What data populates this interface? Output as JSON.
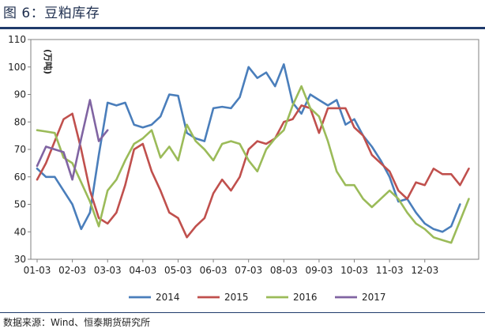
{
  "figure": {
    "title": "图 6：豆粕库存",
    "source": "数据来源：Wind、恒泰期货研究所"
  },
  "colors": {
    "title_rule": "#1f3a6b",
    "axis": "#808080",
    "grid": "#e3e3e3"
  },
  "chart_data": {
    "type": "line",
    "ylabel": "(万吨)",
    "xlabel": "",
    "ylim": [
      30,
      110
    ],
    "yticks": [
      30,
      40,
      50,
      60,
      70,
      80,
      90,
      100,
      110
    ],
    "x_domain": [
      0,
      12
    ],
    "x_tick_labels": [
      "01-03",
      "02-03",
      "03-03",
      "04-03",
      "05-03",
      "06-03",
      "07-03",
      "08-03",
      "09-03",
      "10-03",
      "11-03",
      "12-03"
    ],
    "x_tick_positions": [
      0,
      1,
      2,
      3,
      4,
      5,
      6,
      7,
      8,
      9,
      10,
      11
    ],
    "grid": false,
    "legend_position": "bottom",
    "series": [
      {
        "name": "2014",
        "color": "#4a7ebb",
        "x": [
          0,
          0.25,
          0.5,
          1.0,
          1.25,
          1.5,
          1.75,
          2.0,
          2.25,
          2.5,
          2.75,
          3.0,
          3.25,
          3.5,
          3.75,
          4.0,
          4.25,
          4.5,
          4.75,
          5.0,
          5.25,
          5.5,
          5.75,
          6.0,
          6.25,
          6.5,
          6.75,
          7.0,
          7.25,
          7.5,
          7.75,
          8.0,
          8.25,
          8.5,
          8.75,
          9.0,
          9.25,
          9.5,
          9.75,
          10.0,
          10.25,
          10.5,
          10.75,
          11.0,
          11.25,
          11.5,
          11.75
        ],
        "values": [
          63,
          60,
          60,
          50,
          41,
          47,
          68,
          87,
          86,
          87,
          79,
          78,
          79,
          82,
          90,
          89.5,
          76,
          74,
          73,
          85,
          85.5,
          85,
          89,
          100,
          96,
          98,
          93,
          101,
          87,
          83,
          90,
          88,
          86,
          88,
          79,
          81,
          75,
          71,
          66,
          60,
          51,
          52,
          47,
          43,
          41,
          40,
          42
        ]
      },
      {
        "name": "2015",
        "color": "#c0504d",
        "x": [
          0,
          0.25,
          0.5,
          0.75,
          1.0,
          1.25,
          1.5,
          1.75,
          2.0,
          2.25,
          2.5,
          2.75,
          3.0,
          3.25,
          3.5,
          3.75,
          4.0,
          4.25,
          4.5,
          4.75,
          5.0,
          5.25,
          5.5,
          5.75,
          6.0,
          6.25,
          6.5,
          6.75,
          7.0,
          7.25,
          7.5,
          7.75,
          8.0,
          8.25,
          8.5,
          8.75,
          9.0,
          9.25,
          9.5,
          9.75,
          10.0,
          10.25,
          10.5,
          10.75,
          11.0,
          11.25,
          11.5,
          11.75
        ],
        "values": [
          59,
          65,
          73,
          81,
          83,
          70,
          55,
          45,
          43,
          47,
          57,
          70,
          72,
          62,
          55,
          47,
          45,
          38,
          42,
          45,
          54,
          59,
          55,
          60,
          70,
          73,
          72,
          74,
          80,
          81,
          86,
          85,
          76,
          85,
          85,
          85,
          78,
          75,
          68,
          65,
          62,
          55,
          52,
          58,
          57,
          63,
          61,
          61
        ]
      },
      {
        "name": "2016",
        "color": "#9bbb59",
        "x": [
          0,
          0.25,
          0.5,
          0.75,
          1.0,
          1.25,
          1.5,
          1.75,
          2.0,
          2.25,
          2.5,
          2.75,
          3.0,
          3.25,
          3.5,
          3.75,
          4.0,
          4.25,
          4.5,
          4.75,
          5.0,
          5.25,
          5.5,
          5.75,
          6.0,
          6.25,
          6.5,
          6.75,
          7.0,
          7.25,
          7.5,
          7.75,
          8.0,
          8.25,
          8.5,
          8.75,
          9.0,
          9.25,
          9.5,
          9.75,
          10.0,
          10.25,
          10.5,
          10.75,
          11.0,
          11.25,
          11.5,
          11.75
        ],
        "values": [
          77,
          76.5,
          76,
          67,
          65,
          58,
          51,
          42,
          55,
          59,
          66,
          72,
          74,
          77,
          67,
          71,
          66,
          79,
          73,
          70,
          66,
          72,
          73,
          72,
          66,
          62,
          70,
          74,
          77,
          86,
          93,
          85,
          82,
          73,
          62,
          57,
          57,
          52,
          49,
          52,
          55,
          52,
          47,
          43,
          41,
          38,
          37,
          36
        ]
      },
      {
        "name": "2017",
        "color": "#8064a2",
        "x": [
          0,
          0.25,
          0.5,
          0.75,
          1.0,
          1.25,
          1.5,
          1.75,
          2.0
        ],
        "values": [
          64,
          71,
          70,
          69,
          59,
          74,
          88,
          73,
          77
        ]
      }
    ],
    "series_tail": {
      "2014": {
        "x": [
          11.75,
          12.0
        ],
        "values": [
          42,
          50
        ]
      },
      "2015": {
        "x": [
          11.75,
          12.0,
          12.25
        ],
        "values": [
          61,
          57,
          63
        ]
      },
      "2016": {
        "x": [
          11.75,
          12.0,
          12.25
        ],
        "values": [
          36,
          44,
          52
        ]
      }
    }
  }
}
